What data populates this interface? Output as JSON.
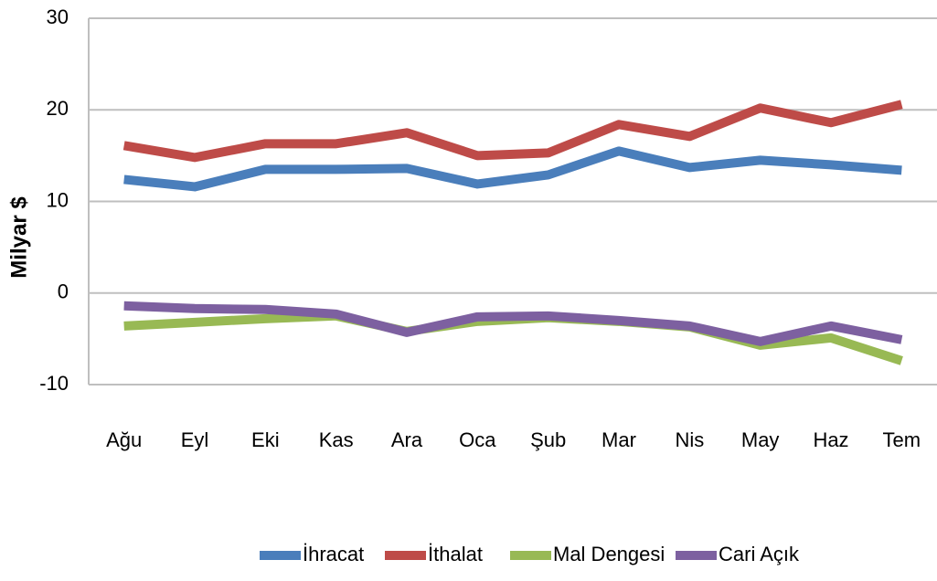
{
  "chart_data": {
    "type": "line",
    "y_label": "Milyar $",
    "categories": [
      "Ağu",
      "Eyl",
      "Eki",
      "Kas",
      "Ara",
      "Oca",
      "Şub",
      "Mar",
      "Nis",
      "May",
      "Haz",
      "Tem"
    ],
    "series": [
      {
        "name": "İhracat",
        "color": "#4a7ebb",
        "values": [
          12.4,
          11.6,
          13.5,
          13.5,
          13.6,
          11.9,
          12.9,
          15.5,
          13.7,
          14.5,
          14.0,
          13.4
        ]
      },
      {
        "name": "İthalat",
        "color": "#be4b48",
        "values": [
          16.1,
          14.8,
          16.3,
          16.3,
          17.5,
          15.0,
          15.3,
          18.4,
          17.1,
          20.2,
          18.6,
          20.6
        ]
      },
      {
        "name": "Mal Dengesi",
        "color": "#98b954",
        "values": [
          -3.6,
          -3.2,
          -2.8,
          -2.5,
          -4.2,
          -3.1,
          -2.7,
          -3.1,
          -3.7,
          -5.7,
          -4.9,
          -7.4
        ]
      },
      {
        "name": "Cari Açık",
        "color": "#7d60a0",
        "values": [
          -1.4,
          -1.7,
          -1.8,
          -2.3,
          -4.3,
          -2.6,
          -2.5,
          -3.0,
          -3.6,
          -5.3,
          -3.6,
          -5.1
        ]
      }
    ],
    "ylim": [
      -10,
      30
    ],
    "yticks": [
      -10,
      0,
      10,
      20,
      30
    ],
    "grid": true,
    "legend": "bottom"
  }
}
